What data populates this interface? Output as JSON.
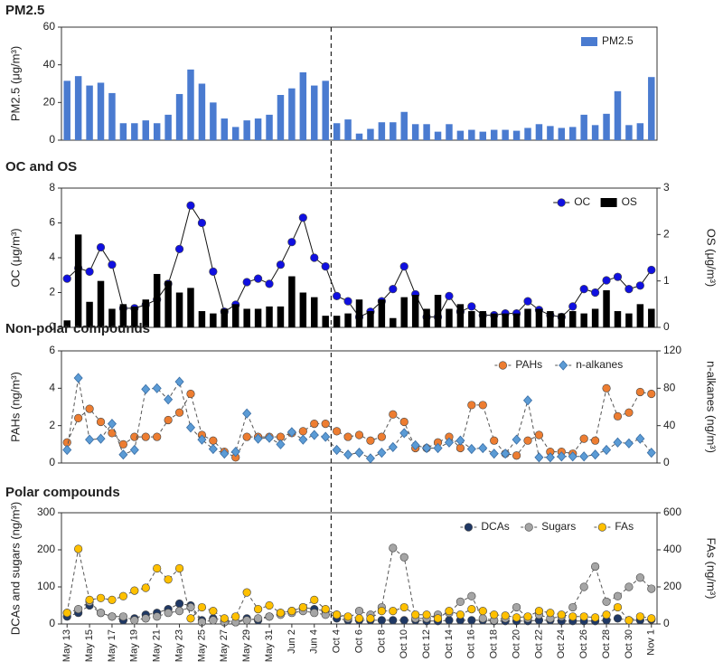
{
  "chart_data": [
    {
      "type": "bar",
      "title": "PM2.5",
      "ylabel": "PM2.5 (μg/m³)",
      "ylim": [
        0,
        60
      ],
      "yticks": [
        0,
        20,
        40,
        60
      ],
      "legend": "upper right",
      "series": [
        {
          "name": "PM2.5",
          "color": "#4a7bd0",
          "values": [
            31.5,
            34,
            29,
            30.5,
            25,
            9,
            9,
            10.5,
            9,
            13.5,
            24.5,
            37.5,
            30,
            20,
            11.5,
            7,
            10.5,
            11.5,
            13.5,
            24,
            27.5,
            36,
            29,
            31.5,
            9,
            11,
            3.5,
            6,
            9.5,
            9.5,
            15,
            8.5,
            8.5,
            4.5,
            8.5,
            5,
            5.5,
            4.5,
            5.5,
            5.5,
            5,
            6.5,
            8.5,
            7.5,
            6.5,
            7,
            13.5,
            8,
            14,
            26,
            8,
            9,
            33.5
          ]
        }
      ]
    },
    {
      "type": "combo",
      "title": "OC and OS",
      "ylabel": "OC (μg/m³)",
      "y2label": "OS (μg/m³)",
      "ylim": [
        0,
        8
      ],
      "yticks": [
        0,
        2,
        4,
        6,
        8
      ],
      "y2lim": [
        0,
        3
      ],
      "y2ticks": [
        0,
        1,
        2,
        3
      ],
      "legend": "upper right",
      "series": [
        {
          "name": "OC",
          "type": "line",
          "marker": "circle",
          "color": "#1010e0",
          "values": [
            2.8,
            3.4,
            3.2,
            4.6,
            3.6,
            1.1,
            1.1,
            1.3,
            1.6,
            2.5,
            4.5,
            7.0,
            6.0,
            3.2,
            0.9,
            1.3,
            2.6,
            2.8,
            2.5,
            3.6,
            4.9,
            6.3,
            4.0,
            3.5,
            1.8,
            1.5,
            0.6,
            0.9,
            1.5,
            2.2,
            3.5,
            1.9,
            0.6,
            0.6,
            1.8,
            0.9,
            1.2,
            0.7,
            0.7,
            0.8,
            0.8,
            1.5,
            1.0,
            0.7,
            0.6,
            1.2,
            2.2,
            2.0,
            2.7,
            2.9,
            2.2,
            2.4,
            3.3
          ]
        },
        {
          "name": "OS",
          "type": "bar",
          "axis": "y2",
          "color": "#000000",
          "values": [
            0.15,
            2.0,
            0.55,
            1.0,
            0.4,
            0.5,
            0.45,
            0.6,
            1.15,
            1.0,
            0.75,
            0.85,
            0.35,
            0.3,
            0.4,
            0.5,
            0.4,
            0.4,
            0.45,
            0.45,
            1.1,
            0.75,
            0.65,
            0.25,
            0.25,
            0.3,
            0.6,
            0.35,
            0.6,
            0.2,
            0.65,
            0.7,
            0.4,
            0.7,
            0.4,
            0.5,
            0.35,
            0.35,
            0.3,
            0.3,
            0.3,
            0.4,
            0.4,
            0.35,
            0.3,
            0.35,
            0.3,
            0.4,
            0.8,
            0.35,
            0.3,
            0.5,
            0.4
          ]
        }
      ]
    },
    {
      "type": "line",
      "title": "Non-polar compounds",
      "ylabel": "PAHs (ng/m³)",
      "y2label": "n-alkanes (ng/m³)",
      "ylim": [
        0,
        6
      ],
      "yticks": [
        0,
        2,
        4,
        6
      ],
      "y2lim": [
        0,
        120
      ],
      "y2ticks": [
        0,
        40,
        80,
        120
      ],
      "legend": "upper right",
      "series": [
        {
          "name": "PAHs",
          "marker": "circle",
          "color": "#ed7d31",
          "values": [
            1.1,
            2.4,
            2.9,
            2.2,
            1.6,
            1.0,
            1.4,
            1.4,
            1.4,
            2.3,
            2.7,
            3.7,
            1.5,
            1.2,
            0.6,
            0.3,
            1.4,
            1.4,
            1.4,
            1.4,
            1.6,
            1.7,
            2.1,
            2.1,
            1.7,
            1.4,
            1.5,
            1.2,
            1.4,
            2.6,
            2.2,
            0.8,
            0.8,
            1.1,
            1.4,
            0.8,
            3.1,
            3.1,
            1.2,
            0.5,
            0.4,
            1.2,
            1.5,
            0.6,
            0.6,
            0.5,
            1.3,
            1.2,
            4.0,
            2.5,
            2.7,
            3.8,
            3.7
          ]
        },
        {
          "name": "n-alkanes",
          "axis": "y2",
          "marker": "diamond",
          "color": "#5b9bd5",
          "values": [
            14,
            91,
            25,
            26,
            42,
            9,
            14,
            79,
            80,
            68,
            87,
            38,
            25,
            15,
            10,
            12,
            53,
            26,
            27,
            20,
            33,
            25,
            30,
            28,
            14,
            9,
            11,
            5,
            11,
            17,
            32,
            19,
            16,
            16,
            22,
            24,
            15,
            16,
            10,
            10,
            25,
            67,
            6,
            6,
            7,
            7,
            7,
            9,
            14,
            22,
            21,
            26,
            11
          ]
        }
      ]
    },
    {
      "type": "line",
      "title": "Polar compounds",
      "ylabel": "DCAs and sugars (ng/m³)",
      "y2label": "FAs (ng/m³)",
      "ylim": [
        0,
        300
      ],
      "yticks": [
        0,
        100,
        200,
        300
      ],
      "y2lim": [
        0,
        600
      ],
      "y2ticks": [
        0,
        200,
        400,
        600
      ],
      "legend": "upper right",
      "categories": [
        "May 13",
        null,
        "May 15",
        null,
        "May 17",
        null,
        "May 19",
        null,
        "May 21",
        null,
        "May 23",
        null,
        "May 25",
        null,
        "May 27",
        null,
        "May 29",
        null,
        "May 31",
        null,
        "Jun 2",
        null,
        "Jun 4",
        null,
        "Oct 4",
        null,
        "Oct 6",
        null,
        "Oct 8",
        null,
        "Oct 10",
        null,
        "Oct 12",
        null,
        "Oct 14",
        null,
        "Oct 16",
        null,
        "Oct 18",
        null,
        "Oct 20",
        null,
        "Oct 22",
        null,
        "Oct 24",
        null,
        "Oct 26",
        null,
        "Oct 28",
        null,
        "Oct 30",
        null,
        "Nov 1"
      ],
      "series": [
        {
          "name": "DCAs",
          "marker": "circle",
          "color": "#1f3864",
          "values": [
            20,
            30,
            50,
            30,
            20,
            10,
            15,
            25,
            30,
            40,
            55,
            50,
            10,
            15,
            10,
            5,
            15,
            10,
            20,
            30,
            35,
            45,
            40,
            35,
            15,
            10,
            10,
            10,
            10,
            10,
            10,
            10,
            8,
            8,
            10,
            10,
            10,
            10,
            8,
            8,
            8,
            8,
            10,
            10,
            8,
            8,
            8,
            8,
            10,
            15,
            10,
            10,
            12
          ]
        },
        {
          "name": "Sugars",
          "marker": "circle",
          "color": "#a5a5a5",
          "values": [
            30,
            40,
            60,
            30,
            20,
            20,
            10,
            15,
            20,
            30,
            35,
            45,
            5,
            10,
            5,
            5,
            10,
            15,
            20,
            25,
            30,
            35,
            30,
            25,
            25,
            15,
            35,
            25,
            45,
            205,
            180,
            15,
            15,
            25,
            30,
            60,
            75,
            15,
            10,
            15,
            45,
            15,
            25,
            15,
            20,
            45,
            100,
            155,
            60,
            75,
            100,
            125,
            95
          ]
        },
        {
          "name": "FAs",
          "axis": "y2",
          "marker": "circle",
          "color": "#ffc000",
          "values": [
            60,
            405,
            130,
            140,
            130,
            150,
            180,
            195,
            300,
            240,
            300,
            30,
            90,
            70,
            30,
            40,
            170,
            80,
            100,
            60,
            70,
            90,
            130,
            80,
            50,
            40,
            30,
            30,
            70,
            70,
            90,
            50,
            50,
            30,
            70,
            50,
            80,
            70,
            50,
            45,
            35,
            40,
            70,
            60,
            50,
            40,
            40,
            35,
            50,
            90,
            20,
            40,
            30
          ]
        }
      ]
    }
  ]
}
